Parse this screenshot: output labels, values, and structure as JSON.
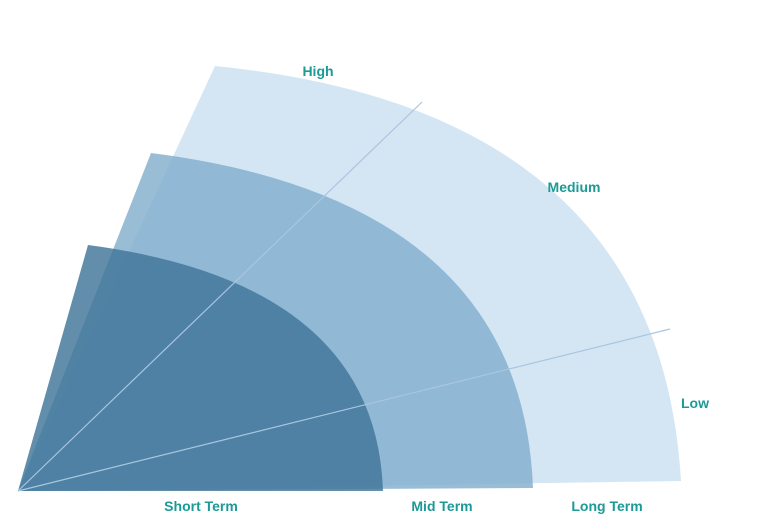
{
  "colors": {
    "label": "#1b9a96",
    "long_term_band": "#d4e6f3",
    "mid_term_band": "#7eaaca",
    "short_term_band": "#3f7599",
    "divider": "#a9c6e2"
  },
  "horizon_labels": {
    "short_term": "Short Term",
    "mid_term": "Mid Term",
    "long_term": "Long Term"
  },
  "level_labels": {
    "high": "High",
    "medium": "Medium",
    "low": "Low"
  }
}
